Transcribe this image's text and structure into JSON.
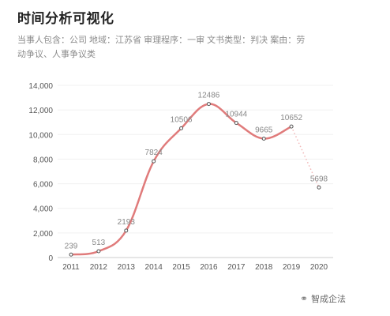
{
  "title": "时间分析可视化",
  "subtitle": "当事人包含：公司  地域：江苏省  审理程序：一审  文书类型：判决  案由：劳动争议、人事争议类",
  "watermark": {
    "icon": "wechat-icon",
    "text": "智成企法"
  },
  "chart_data": {
    "type": "line",
    "categories": [
      "2011",
      "2012",
      "2013",
      "2014",
      "2015",
      "2016",
      "2017",
      "2018",
      "2019",
      "2020"
    ],
    "series": [
      {
        "values": [
          239,
          513,
          2193,
          7824,
          10506,
          12486,
          10944,
          9665,
          10652,
          5698
        ]
      }
    ],
    "yticks": [
      "0",
      "2,000",
      "4,000",
      "6,000",
      "8,000",
      "10,000",
      "12,000",
      "14,000"
    ],
    "ylim": [
      0,
      14000
    ],
    "grid": true,
    "last_segment_style": "dotted",
    "color": "#e07b7b"
  }
}
